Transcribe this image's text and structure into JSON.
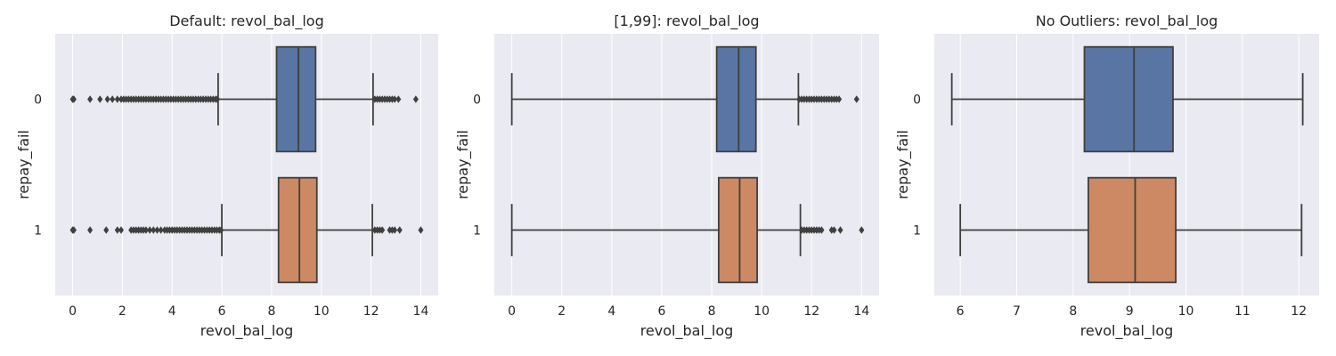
{
  "colors": {
    "panel_bg": "#eaeaf2",
    "grid": "#ffffff",
    "box_line": "#3f3f3f",
    "series_0": "#5875a4",
    "series_1": "#cc8963"
  },
  "chart_data": [
    {
      "type": "boxplot",
      "orientation": "horizontal",
      "title": "Default: revol_bal_log",
      "xlabel": "revol_bal_log",
      "ylabel": "repay_fail",
      "xlim": [
        -0.7,
        14.7
      ],
      "xticks": [
        0,
        2,
        4,
        6,
        8,
        10,
        12,
        14
      ],
      "xtick_labels": [
        "0",
        "2",
        "4",
        "6",
        "8",
        "10",
        "12",
        "14"
      ],
      "grid": true,
      "legend": "none",
      "categories": [
        "0",
        "1"
      ],
      "boxes": [
        {
          "category": "0",
          "whisker_low": 5.85,
          "q1": 8.2,
          "median": 9.08,
          "q3": 9.77,
          "whisker_high": 12.08,
          "outliers": [
            0,
            0.05,
            0.7,
            1.1,
            1.4,
            1.6,
            1.8,
            1.95,
            2.05,
            2.15,
            2.25,
            2.35,
            2.45,
            2.55,
            2.65,
            2.75,
            2.85,
            2.95,
            3.05,
            3.15,
            3.25,
            3.35,
            3.45,
            3.55,
            3.65,
            3.75,
            3.85,
            3.95,
            4.05,
            4.15,
            4.25,
            4.35,
            4.45,
            4.55,
            4.65,
            4.75,
            4.85,
            4.95,
            5.05,
            5.15,
            5.25,
            5.35,
            5.45,
            5.55,
            5.65,
            5.75,
            5.82,
            12.15,
            12.25,
            12.35,
            12.45,
            12.55,
            12.65,
            12.75,
            12.85,
            12.95,
            13.1,
            13.8
          ]
        },
        {
          "category": "1",
          "whisker_low": 6.0,
          "q1": 8.28,
          "median": 9.12,
          "q3": 9.82,
          "whisker_high": 12.05,
          "outliers": [
            0,
            0.05,
            0.7,
            1.35,
            1.8,
            1.95,
            2.35,
            2.45,
            2.55,
            2.65,
            2.75,
            2.85,
            2.95,
            3.1,
            3.25,
            3.4,
            3.55,
            3.7,
            3.8,
            3.9,
            4.0,
            4.1,
            4.2,
            4.3,
            4.4,
            4.5,
            4.6,
            4.7,
            4.8,
            4.9,
            5.0,
            5.1,
            5.2,
            5.3,
            5.4,
            5.5,
            5.6,
            5.7,
            5.8,
            5.9,
            5.97,
            12.15,
            12.25,
            12.35,
            12.45,
            12.75,
            12.85,
            12.95,
            13.15,
            14.0
          ]
        }
      ]
    },
    {
      "type": "boxplot",
      "orientation": "horizontal",
      "title": "[1,99]: revol_bal_log",
      "xlabel": "revol_bal_log",
      "ylabel": "repay_fail",
      "xlim": [
        -0.7,
        14.7
      ],
      "xticks": [
        0,
        2,
        4,
        6,
        8,
        10,
        12,
        14
      ],
      "xtick_labels": [
        "0",
        "2",
        "4",
        "6",
        "8",
        "10",
        "12",
        "14"
      ],
      "grid": true,
      "legend": "none",
      "categories": [
        "0",
        "1"
      ],
      "boxes": [
        {
          "category": "0",
          "whisker_low": 0,
          "q1": 8.2,
          "median": 9.08,
          "q3": 9.77,
          "whisker_high": 11.47,
          "outliers": [
            11.5,
            11.6,
            11.7,
            11.8,
            11.9,
            12.0,
            12.1,
            12.2,
            12.3,
            12.4,
            12.5,
            12.6,
            12.7,
            12.8,
            12.9,
            13.0,
            13.1,
            13.8
          ]
        },
        {
          "category": "1",
          "whisker_low": 0,
          "q1": 8.28,
          "median": 9.12,
          "q3": 9.82,
          "whisker_high": 11.55,
          "outliers": [
            11.6,
            11.7,
            11.8,
            11.9,
            12.0,
            12.1,
            12.2,
            12.3,
            12.4,
            12.8,
            12.9,
            13.15,
            14.0
          ]
        }
      ]
    },
    {
      "type": "boxplot",
      "orientation": "horizontal",
      "title": "No Outliers: revol_bal_log",
      "xlabel": "revol_bal_log",
      "ylabel": "repay_fail",
      "xlim": [
        5.54,
        12.36
      ],
      "xticks": [
        6,
        7,
        8,
        9,
        10,
        11,
        12
      ],
      "xtick_labels": [
        "6",
        "7",
        "8",
        "9",
        "10",
        "11",
        "12"
      ],
      "grid": true,
      "legend": "none",
      "categories": [
        "0",
        "1"
      ],
      "boxes": [
        {
          "category": "0",
          "whisker_low": 5.85,
          "q1": 8.2,
          "median": 9.08,
          "q3": 9.77,
          "whisker_high": 12.07,
          "outliers": []
        },
        {
          "category": "1",
          "whisker_low": 6.0,
          "q1": 8.27,
          "median": 9.1,
          "q3": 9.82,
          "whisker_high": 12.05,
          "outliers": []
        }
      ]
    }
  ]
}
